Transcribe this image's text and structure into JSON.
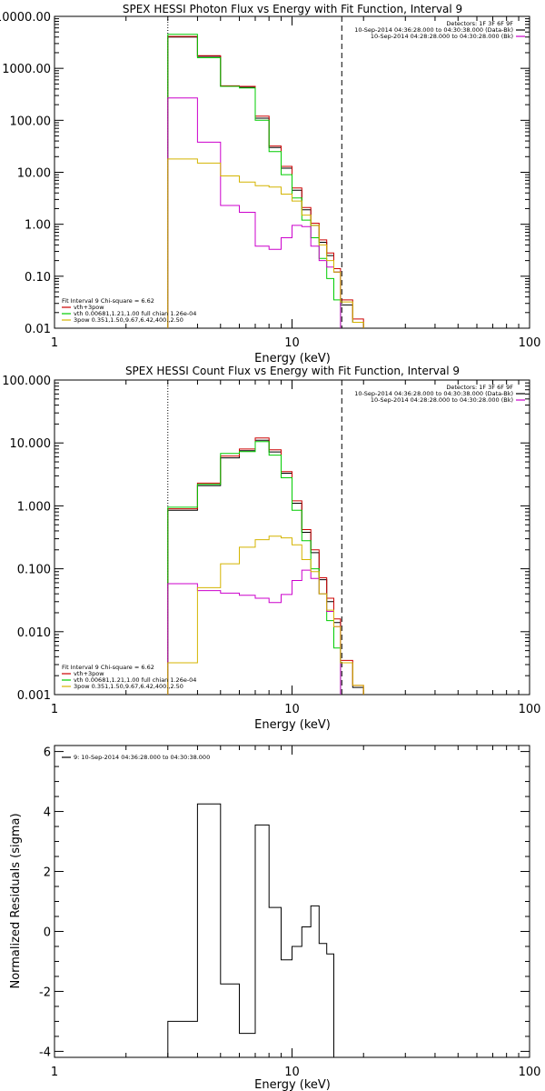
{
  "chart_data": [
    {
      "type": "line",
      "scale": {
        "x": "log",
        "y": "log"
      },
      "title": "SPEX HESSI Photon Flux vs Energy with Fit Function, Interval 9",
      "xlabel": "Energy (keV)",
      "ylabel": "",
      "xlim": [
        1,
        100
      ],
      "ylim": [
        0.01,
        10000
      ],
      "x_ticks": [
        {
          "v": 1,
          "label": "1"
        },
        {
          "v": 10,
          "label": "10"
        },
        {
          "v": 100,
          "label": "100"
        }
      ],
      "y_ticks": [
        {
          "v": 0.01,
          "label": "0.01"
        },
        {
          "v": 0.1,
          "label": "0.10"
        },
        {
          "v": 1,
          "label": "1.00"
        },
        {
          "v": 10,
          "label": "10.00"
        },
        {
          "v": 100,
          "label": "100.00"
        },
        {
          "v": 1000,
          "label": "1000.00"
        },
        {
          "v": 10000,
          "label": "10000.00"
        }
      ],
      "vlines": [
        {
          "x": 3.0,
          "style": "dotted"
        },
        {
          "x": 16.2,
          "style": "dashed"
        }
      ],
      "info_lines": [
        "Detectors: 1F 3F 6F 9F",
        "10-Sep-2014 04:36:28.000 to 04:30:38.000 (Data-Bk)",
        "10-Sep-2014 04:28:28.000 to 04:30:28.000 (Bk)"
      ],
      "info_colors": [
        "",
        "#000000",
        "#cc00cc"
      ],
      "legend_lines": [
        "Fit Interval 9   Chi-square = 6.62",
        "vth+3pow",
        "vth 0.00681,1.21,1.00  full chian 1.26e-04",
        "3pow 0.351,1.50,9.67,6.42,400.,2.50"
      ],
      "legend_colors": [
        "",
        "#cc0000",
        "#00cc00",
        "#d4b400"
      ],
      "series": [
        {
          "color": "#000000",
          "edges": [
            3.0,
            4.0,
            5.0,
            6.0,
            7.0,
            8.0,
            9.0,
            10.0,
            11.0,
            12.0,
            13.0,
            14.0,
            15.0,
            16.0,
            18.0,
            20.0
          ],
          "values": [
            4000,
            1700,
            450,
            430,
            110,
            30,
            12,
            4.5,
            1.9,
            0.95,
            0.45,
            0.25,
            0.12,
            0.028,
            0.013
          ]
        },
        {
          "color": "#cc0000",
          "edges": [
            3.0,
            4.0,
            5.0,
            6.0,
            7.0,
            8.0,
            9.0,
            10.0,
            11.0,
            12.0,
            13.0,
            14.0,
            15.0,
            16.0,
            18.0,
            20.0
          ],
          "values": [
            4100,
            1750,
            460,
            450,
            120,
            32,
            13,
            5.0,
            2.1,
            1.05,
            0.5,
            0.28,
            0.14,
            0.035,
            0.015
          ]
        },
        {
          "color": "#00cc00",
          "edges": [
            3.0,
            4.0,
            5.0,
            6.0,
            7.0,
            8.0,
            9.0,
            10.0,
            11.0,
            12.0,
            13.0,
            14.0,
            15.0,
            16.0
          ],
          "values": [
            4500,
            1600,
            450,
            420,
            100,
            25,
            9,
            3.2,
            1.2,
            0.55,
            0.22,
            0.09,
            0.035
          ]
        },
        {
          "color": "#cc00cc",
          "edges": [
            3.0,
            4.0,
            5.0,
            6.0,
            7.0,
            8.0,
            9.0,
            10.0,
            11.0,
            12.0,
            13.0,
            14.0,
            15.0,
            16.0
          ],
          "values": [
            270,
            38,
            2.3,
            1.7,
            0.38,
            0.33,
            0.55,
            0.95,
            0.9,
            0.38,
            0.2,
            0.15,
            0.12
          ]
        },
        {
          "color": "#d4b400",
          "edges": [
            3.0,
            4.0,
            5.0,
            6.0,
            7.0,
            8.0,
            9.0,
            10.0,
            11.0,
            12.0,
            13.0,
            14.0,
            15.0,
            16.0,
            18.0,
            20.0
          ],
          "values": [
            18,
            15,
            8.5,
            6.5,
            5.5,
            5.2,
            3.8,
            2.8,
            1.5,
            0.95,
            0.4,
            0.2,
            0.12,
            0.032,
            0.013
          ]
        }
      ]
    },
    {
      "type": "line",
      "scale": {
        "x": "log",
        "y": "log"
      },
      "title": "SPEX HESSI Count Flux vs Energy with Fit Function, Interval 9",
      "xlabel": "Energy (keV)",
      "ylabel": "",
      "xlim": [
        1,
        100
      ],
      "ylim": [
        0.001,
        100
      ],
      "x_ticks": [
        {
          "v": 1,
          "label": "1"
        },
        {
          "v": 10,
          "label": "10"
        },
        {
          "v": 100,
          "label": "100"
        }
      ],
      "y_ticks": [
        {
          "v": 0.001,
          "label": "0.001"
        },
        {
          "v": 0.01,
          "label": "0.010"
        },
        {
          "v": 0.1,
          "label": "0.100"
        },
        {
          "v": 1,
          "label": "1.000"
        },
        {
          "v": 10,
          "label": "10.000"
        },
        {
          "v": 100,
          "label": "100.000"
        }
      ],
      "vlines": [
        {
          "x": 3.0,
          "style": "dotted"
        },
        {
          "x": 16.2,
          "style": "dashed"
        }
      ],
      "info_lines": [
        "Detectors: 1F 3F 6F 9F",
        "10-Sep-2014 04:36:28.000 to 04:30:38.000 (Data-Bk)",
        "10-Sep-2014 04:28:28.000 to 04:30:28.000 (Bk)"
      ],
      "info_colors": [
        "",
        "#000000",
        "#cc00cc"
      ],
      "legend_lines": [
        "Fit Interval 9   Chi-square = 6.62",
        "vth+3pow",
        "vth 0.00681,1.21,1.00  full chian 1.26e-04",
        "3pow 0.351,1.50,9.67,6.42,400.,2.50"
      ],
      "legend_colors": [
        "",
        "#cc0000",
        "#00cc00",
        "#d4b400"
      ],
      "series": [
        {
          "color": "#000000",
          "edges": [
            3.0,
            4.0,
            5.0,
            6.0,
            7.0,
            8.0,
            9.0,
            10.0,
            11.0,
            12.0,
            13.0,
            14.0,
            15.0,
            16.0,
            18.0,
            20.0
          ],
          "values": [
            0.85,
            2.1,
            5.8,
            7.5,
            11.0,
            7.2,
            3.3,
            1.1,
            0.38,
            0.18,
            0.067,
            0.03,
            0.014,
            0.0032,
            0.0013
          ]
        },
        {
          "color": "#cc0000",
          "edges": [
            3.0,
            4.0,
            5.0,
            6.0,
            7.0,
            8.0,
            9.0,
            10.0,
            11.0,
            12.0,
            13.0,
            14.0,
            15.0,
            16.0,
            18.0,
            20.0
          ],
          "values": [
            0.9,
            2.3,
            6.2,
            8.0,
            12.0,
            7.8,
            3.5,
            1.2,
            0.42,
            0.2,
            0.072,
            0.034,
            0.016,
            0.0035,
            0.0014
          ]
        },
        {
          "color": "#00cc00",
          "edges": [
            3.0,
            4.0,
            5.0,
            6.0,
            7.0,
            8.0,
            9.0,
            10.0,
            11.0,
            12.0,
            13.0,
            14.0,
            15.0,
            16.0
          ],
          "values": [
            0.95,
            2.2,
            6.8,
            7.3,
            10.5,
            6.4,
            2.8,
            0.85,
            0.28,
            0.1,
            0.04,
            0.015,
            0.0055
          ]
        },
        {
          "color": "#cc00cc",
          "edges": [
            3.0,
            4.0,
            5.0,
            6.0,
            7.0,
            8.0,
            9.0,
            10.0,
            11.0,
            12.0,
            13.0,
            14.0,
            15.0,
            16.0
          ],
          "values": [
            0.058,
            0.045,
            0.041,
            0.038,
            0.034,
            0.029,
            0.039,
            0.065,
            0.095,
            0.07,
            0.04,
            0.021,
            0.012
          ]
        },
        {
          "color": "#d4b400",
          "edges": [
            3.0,
            4.0,
            5.0,
            6.0,
            7.0,
            8.0,
            9.0,
            10.0,
            11.0,
            12.0,
            13.0,
            14.0,
            15.0,
            16.0,
            18.0,
            20.0
          ],
          "values": [
            0.0032,
            0.05,
            0.12,
            0.22,
            0.29,
            0.33,
            0.31,
            0.24,
            0.14,
            0.09,
            0.04,
            0.022,
            0.012,
            0.0032,
            0.0014
          ]
        }
      ]
    },
    {
      "type": "line",
      "scale": {
        "x": "log",
        "y": "linear"
      },
      "title": "",
      "xlabel": "Energy (keV)",
      "ylabel": "Normalized Residuals (sigma)",
      "xlim": [
        1,
        100
      ],
      "ylim": [
        -4.2,
        6.2
      ],
      "x_ticks": [
        {
          "v": 1,
          "label": "1"
        },
        {
          "v": 10,
          "label": "10"
        },
        {
          "v": 100,
          "label": "100"
        }
      ],
      "y_ticks": [
        {
          "v": -4,
          "label": "-4"
        },
        {
          "v": -2,
          "label": "-2"
        },
        {
          "v": 0,
          "label": "0"
        },
        {
          "v": 2,
          "label": "2"
        },
        {
          "v": 4,
          "label": "4"
        },
        {
          "v": 6,
          "label": "6"
        }
      ],
      "vlines": [],
      "info_lines": [],
      "info_colors": [],
      "legend_lines": [
        "9: 10-Sep-2014 04:36:28.000 to 04:30:38.000"
      ],
      "legend_colors": [
        "#000000"
      ],
      "series": [
        {
          "color": "#000000",
          "edges": [
            3.0,
            4.0,
            5.0,
            6.0,
            7.0,
            8.0,
            9.0,
            10.0,
            11.0,
            12.0,
            13.0,
            14.0,
            15.0,
            16.0
          ],
          "values": [
            -3.0,
            4.25,
            -1.75,
            -3.4,
            3.55,
            0.8,
            -0.95,
            -0.5,
            0.15,
            0.85,
            -0.4,
            -0.75,
            -4.3
          ]
        }
      ]
    }
  ]
}
